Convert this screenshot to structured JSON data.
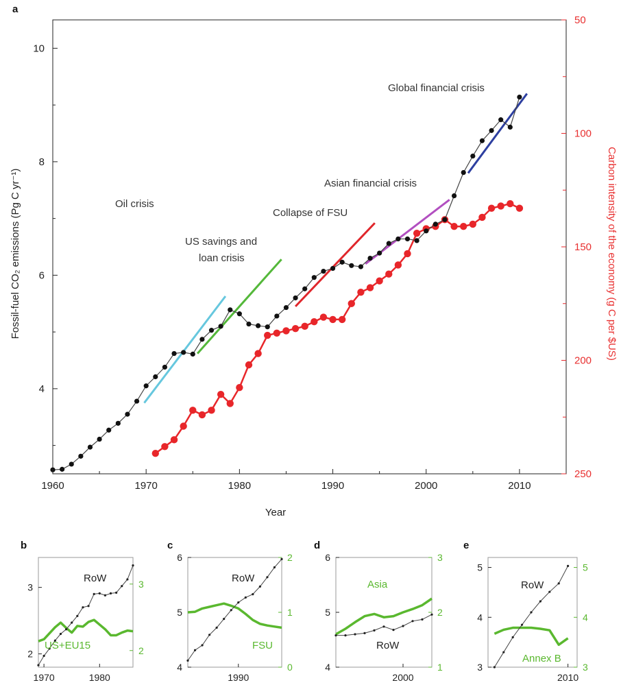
{
  "colors": {
    "black_series": "#111111",
    "red_series": "#e8262a",
    "green_series": "#5ab82f",
    "cyan": "#66c7de",
    "green_line": "#54b83a",
    "red_line": "#e0262b",
    "magenta": "#b24fc0",
    "blue": "#2d3fa0"
  },
  "chart_data": [
    {
      "panel": "a",
      "type": "line",
      "xlabel": "Year",
      "ylabel": "Fossil-fuel CO₂ emissions (Pg C yr⁻¹)",
      "ylabel_right": "Carbon intensity of the economy (g C per $US)",
      "xlim": [
        1960,
        2015
      ],
      "ylim": [
        2.5,
        10.5
      ],
      "ylim_right_inverted": [
        50,
        250
      ],
      "x_ticks": [
        "1960",
        "1970",
        "1980",
        "1990",
        "2000",
        "2010"
      ],
      "y_ticks": [
        "4",
        "6",
        "8",
        "10"
      ],
      "y_right_ticks": [
        "50",
        "100",
        "150",
        "200",
        "250"
      ],
      "series": [
        {
          "x": [
            1960,
            1961,
            1962,
            1963,
            1964,
            1965,
            1966,
            1967,
            1968,
            1969,
            1970,
            1971,
            1972,
            1973,
            1974,
            1975,
            1976,
            1977,
            1978,
            1979,
            1980,
            1981,
            1982,
            1983,
            1984,
            1985,
            1986,
            1987,
            1988,
            1989,
            1990,
            1991,
            1992,
            1993,
            1994,
            1995,
            1996,
            1997,
            1998,
            1999,
            2000,
            2001,
            2002,
            2003,
            2004,
            2005,
            2006,
            2007,
            2008,
            2009,
            2010
          ],
          "values": [
            2.57,
            2.58,
            2.67,
            2.81,
            2.97,
            3.11,
            3.27,
            3.39,
            3.55,
            3.78,
            4.05,
            4.21,
            4.38,
            4.62,
            4.64,
            4.61,
            4.87,
            5.03,
            5.1,
            5.39,
            5.32,
            5.14,
            5.11,
            5.09,
            5.28,
            5.43,
            5.6,
            5.76,
            5.96,
            6.07,
            6.12,
            6.23,
            6.17,
            6.15,
            6.3,
            6.39,
            6.56,
            6.64,
            6.64,
            6.61,
            6.78,
            6.9,
            6.98,
            7.4,
            7.81,
            8.1,
            8.37,
            8.55,
            8.74,
            8.61,
            9.14
          ]
        },
        {
          "x": [
            1971,
            1972,
            1973,
            1974,
            1975,
            1976,
            1977,
            1978,
            1979,
            1980,
            1981,
            1982,
            1983,
            1984,
            1985,
            1986,
            1987,
            1988,
            1989,
            1990,
            1991,
            1992,
            1993,
            1994,
            1995,
            1996,
            1997,
            1998,
            1999,
            2000,
            2001,
            2002,
            2003,
            2004,
            2005,
            2006,
            2007,
            2008,
            2009,
            2010
          ],
          "values": [
            241,
            238,
            235,
            229,
            222,
            224,
            222,
            215,
            219,
            212,
            202,
            197,
            189,
            188,
            187,
            186,
            185,
            183,
            181,
            182,
            182,
            175,
            170,
            168,
            165,
            162,
            158,
            153,
            144,
            142,
            141,
            138,
            141,
            141,
            140,
            137,
            133,
            132,
            131,
            133
          ],
          "axis": "right"
        }
      ],
      "trend_lines": [
        {
          "x": [
            1969.8,
            1978.5
          ],
          "y": [
            3.75,
            5.63
          ]
        },
        {
          "x": [
            1975.5,
            1984.5
          ],
          "y": [
            4.62,
            6.28
          ]
        },
        {
          "x": [
            1986.0,
            1994.5
          ],
          "y": [
            5.45,
            6.92
          ]
        },
        {
          "x": [
            1993.5,
            2002.5
          ],
          "y": [
            6.2,
            7.33
          ]
        },
        {
          "x": [
            2004.5,
            2010.8
          ],
          "y": [
            7.8,
            9.2
          ]
        }
      ],
      "annotations": [
        "Oil crisis",
        "US savings and",
        "loan crisis",
        "Collapse of FSU",
        "Asian financial crisis",
        "Global financial crisis"
      ]
    },
    {
      "panel": "b",
      "type": "line",
      "x_ticks": [
        "1970",
        "1980"
      ],
      "y_ticks": [
        "2",
        "3"
      ],
      "y_right_ticks": [
        "2",
        "3"
      ],
      "series": [
        {
          "name": "RoW",
          "x": [
            1969,
            1970,
            1971,
            1972,
            1973,
            1974,
            1975,
            1976,
            1977,
            1978,
            1979,
            1980,
            1981,
            1982,
            1983,
            1984,
            1985,
            1986
          ],
          "values": [
            1.83,
            1.97,
            2.08,
            2.2,
            2.3,
            2.37,
            2.47,
            2.57,
            2.7,
            2.72,
            2.9,
            2.91,
            2.88,
            2.91,
            2.92,
            3.02,
            3.12,
            3.33
          ]
        },
        {
          "name": "US+EU15",
          "axis": "right",
          "x": [
            1969,
            1970,
            1971,
            1972,
            1973,
            1974,
            1975,
            1976,
            1977,
            1978,
            1979,
            1980,
            1981,
            1982,
            1983,
            1984,
            1985,
            1986
          ],
          "values": [
            2.14,
            2.17,
            2.26,
            2.35,
            2.42,
            2.34,
            2.27,
            2.37,
            2.36,
            2.43,
            2.46,
            2.39,
            2.32,
            2.23,
            2.23,
            2.27,
            2.3,
            2.29
          ]
        }
      ]
    },
    {
      "panel": "c",
      "type": "line",
      "x_ticks": [
        "1990"
      ],
      "y_ticks": [
        "4",
        "5",
        "6"
      ],
      "y_right_ticks": [
        "0",
        "1",
        "2"
      ],
      "series": [
        {
          "name": "RoW",
          "x": [
            1983,
            1984,
            1985,
            1986,
            1987,
            1988,
            1989,
            1990,
            1991,
            1992,
            1993,
            1994,
            1995,
            1996
          ],
          "values": [
            4.12,
            4.31,
            4.4,
            4.59,
            4.72,
            4.88,
            5.04,
            5.18,
            5.27,
            5.33,
            5.47,
            5.64,
            5.82,
            5.97
          ]
        },
        {
          "name": "FSU",
          "axis": "right",
          "x": [
            1983,
            1984,
            1985,
            1986,
            1987,
            1988,
            1989,
            1990,
            1991,
            1992,
            1993,
            1994,
            1995,
            1996
          ],
          "values": [
            1.0,
            1.01,
            1.07,
            1.1,
            1.13,
            1.16,
            1.12,
            1.07,
            0.97,
            0.86,
            0.79,
            0.76,
            0.74,
            0.72
          ]
        }
      ]
    },
    {
      "panel": "d",
      "type": "line",
      "x_ticks": [
        "2000"
      ],
      "y_ticks": [
        "4",
        "5",
        "6"
      ],
      "y_right_ticks": [
        "1",
        "2",
        "3"
      ],
      "series": [
        {
          "name": "RoW",
          "x": [
            1993,
            1994,
            1995,
            1996,
            1997,
            1998,
            1999,
            2000,
            2001,
            2002,
            2003
          ],
          "values": [
            4.58,
            4.58,
            4.6,
            4.62,
            4.67,
            4.74,
            4.68,
            4.75,
            4.84,
            4.87,
            4.96
          ]
        },
        {
          "name": "Asia",
          "axis": "right",
          "x": [
            1993,
            1994,
            1995,
            1996,
            1997,
            1998,
            1999,
            2000,
            2001,
            2002,
            2003
          ],
          "values": [
            1.6,
            1.7,
            1.82,
            1.93,
            1.97,
            1.91,
            1.93,
            2.0,
            2.06,
            2.13,
            2.25
          ]
        }
      ]
    },
    {
      "panel": "e",
      "type": "line",
      "x_ticks": [
        "2010"
      ],
      "y_ticks": [
        "3",
        "4",
        "5"
      ],
      "y_right_ticks": [
        "3",
        "4",
        "5"
      ],
      "series": [
        {
          "name": "RoW",
          "x": [
            2002,
            2003,
            2004,
            2005,
            2006,
            2007,
            2008,
            2009,
            2010
          ],
          "values": [
            3.0,
            3.3,
            3.6,
            3.85,
            4.1,
            4.32,
            4.51,
            4.68,
            5.03
          ]
        },
        {
          "name": "Annex B",
          "axis": "right",
          "x": [
            2002,
            2003,
            2004,
            2005,
            2006,
            2007,
            2008,
            2009,
            2010
          ],
          "values": [
            3.67,
            3.75,
            3.79,
            3.79,
            3.79,
            3.77,
            3.74,
            3.45,
            3.58
          ]
        }
      ]
    }
  ],
  "panel_labels": [
    "a",
    "b",
    "c",
    "d",
    "e"
  ]
}
